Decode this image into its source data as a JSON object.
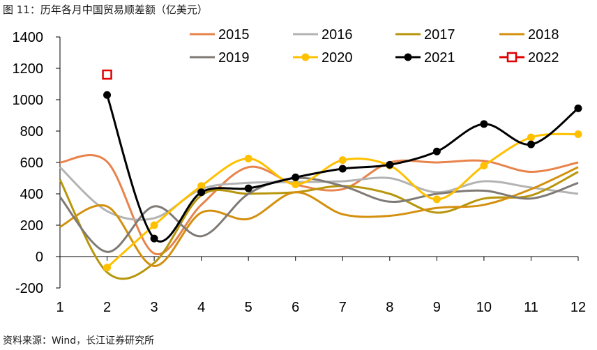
{
  "figure": {
    "title": "图 11：历年各月中国贸易顺差额（亿美元）",
    "source": "资料来源：Wind，长江证券研究所"
  },
  "colors": {
    "2015": "#e8834b",
    "2016": "#b3b3b3",
    "2017": "#b8960c",
    "2018": "#d4900f",
    "2019": "#7f7a75",
    "2020": "#ffc000",
    "2021": "#000000",
    "2022": "#e00000"
  },
  "chart_data": {
    "type": "line",
    "x": [
      1,
      2,
      3,
      4,
      5,
      6,
      7,
      8,
      9,
      10,
      11,
      12
    ],
    "ylim": [
      -200,
      1400
    ],
    "yticks": [
      -200,
      0,
      200,
      400,
      600,
      800,
      1000,
      1200,
      1400
    ],
    "xticks": [
      1,
      2,
      3,
      4,
      5,
      6,
      7,
      8,
      9,
      10,
      11,
      12
    ],
    "legend_position": "top",
    "series": [
      {
        "name": "2015",
        "values": [
          600,
          605,
          20,
          330,
          570,
          460,
          430,
          600,
          600,
          610,
          540,
          600
        ]
      },
      {
        "name": "2016",
        "values": [
          570,
          290,
          245,
          430,
          470,
          475,
          480,
          500,
          410,
          480,
          440,
          400
        ]
      },
      {
        "name": "2017",
        "values": [
          490,
          -100,
          -40,
          390,
          400,
          410,
          450,
          400,
          280,
          370,
          390,
          540
        ]
      },
      {
        "name": "2018",
        "values": [
          190,
          320,
          -60,
          280,
          240,
          410,
          270,
          260,
          310,
          330,
          430,
          570
        ]
      },
      {
        "name": "2019",
        "values": [
          380,
          30,
          320,
          130,
          400,
          500,
          450,
          350,
          400,
          420,
          370,
          470
        ]
      },
      {
        "name": "2020",
        "values": [
          null,
          -70,
          200,
          450,
          625,
          460,
          615,
          580,
          365,
          580,
          760,
          780
        ]
      },
      {
        "name": "2021",
        "values": [
          null,
          1030,
          115,
          410,
          435,
          505,
          560,
          585,
          670,
          845,
          715,
          945
        ]
      },
      {
        "name": "2022",
        "values": [
          null,
          1160,
          null,
          null,
          null,
          null,
          null,
          null,
          null,
          null,
          null,
          null
        ]
      }
    ]
  }
}
